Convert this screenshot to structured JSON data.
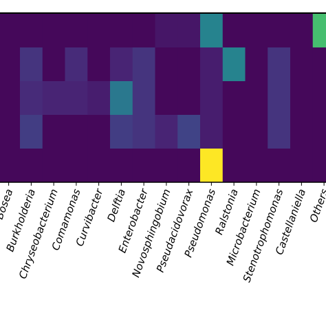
{
  "chart_data": {
    "type": "heatmap",
    "colormap": "viridis",
    "zlim": [
      0,
      1
    ],
    "categories": [
      "Bosea",
      "Burkholderia",
      "Chryseobacterium",
      "Comamonas",
      "Curvibacter",
      "Delftia",
      "Enterobacter",
      "Novosphingobium",
      "Pseudacidovorax",
      "Pseudomonas",
      "Ralstonia",
      "Microbacterium",
      "Stenotrophomonas",
      "Castellaniella",
      "Others"
    ],
    "values": [
      [
        0.02,
        0.02,
        0.02,
        0.02,
        0.02,
        0.02,
        0.02,
        0.06,
        0.06,
        0.45,
        0.02,
        0.02,
        0.02,
        0.02,
        0.7
      ],
      [
        0.02,
        0.15,
        0.02,
        0.12,
        0.02,
        0.1,
        0.15,
        0.02,
        0.02,
        0.08,
        0.45,
        0.02,
        0.15,
        0.02,
        0.02
      ],
      [
        0.02,
        0.12,
        0.1,
        0.1,
        0.08,
        0.4,
        0.15,
        0.02,
        0.02,
        0.08,
        0.02,
        0.02,
        0.15,
        0.02,
        0.02
      ],
      [
        0.02,
        0.18,
        0.02,
        0.02,
        0.02,
        0.18,
        0.15,
        0.1,
        0.2,
        0.08,
        0.02,
        0.02,
        0.15,
        0.02,
        0.02
      ],
      [
        0.02,
        0.02,
        0.02,
        0.02,
        0.02,
        0.02,
        0.02,
        0.02,
        0.02,
        1.0,
        0.02,
        0.02,
        0.02,
        0.02,
        0.02
      ]
    ]
  }
}
